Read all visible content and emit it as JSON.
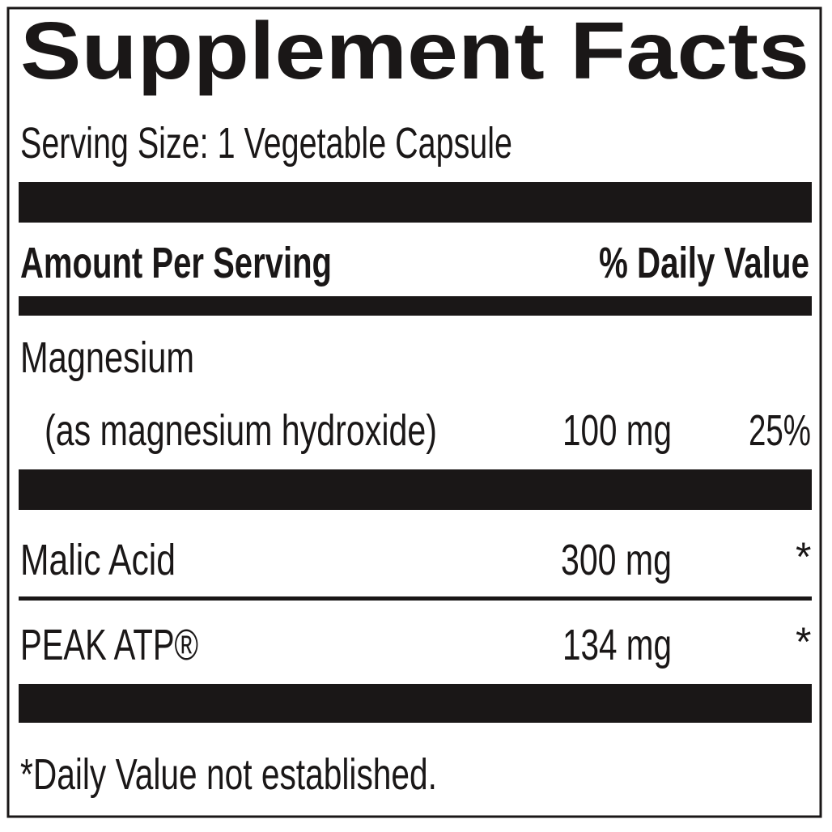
{
  "label": {
    "title": "Supplement Facts",
    "serving_size": "Serving Size: 1 Vegetable Capsule",
    "header": {
      "amount": "Amount Per Serving",
      "daily_value": "% Daily Value"
    },
    "nutrients": [
      {
        "name": "Magnesium",
        "detail": "(as magnesium hydroxide)",
        "amount": "100 mg",
        "dv": "25%"
      },
      {
        "name": "Malic Acid",
        "amount": "300 mg",
        "dv": "*"
      },
      {
        "name": "PEAK ATP®",
        "amount": "134 mg",
        "dv": "*"
      }
    ],
    "footnote": "*Daily Value not established."
  },
  "colors": {
    "ink": "#1a1717",
    "background": "#ffffff"
  }
}
